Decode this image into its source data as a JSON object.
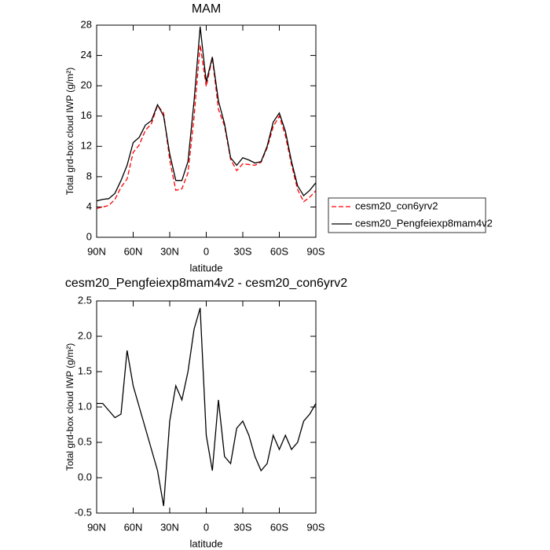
{
  "chart_data": [
    {
      "type": "line",
      "title": "MAM",
      "xlabel": "latitude",
      "ylabel": "Total grd-box cloud IWP (g/m²)",
      "x": [
        90,
        85,
        80,
        75,
        70,
        65,
        60,
        55,
        50,
        45,
        40,
        35,
        30,
        25,
        20,
        15,
        10,
        5,
        0,
        -5,
        -10,
        -15,
        -20,
        -25,
        -30,
        -35,
        -40,
        -45,
        -50,
        -55,
        -60,
        -65,
        -70,
        -75,
        -80,
        -85,
        -90
      ],
      "series": [
        {
          "name": "cesm20_con6yrv2",
          "color": "#ff0000",
          "linestyle": "dashed",
          "values": [
            3.8,
            4.0,
            4.2,
            5.0,
            6.6,
            7.7,
            11.2,
            12.2,
            14.1,
            15.0,
            17.4,
            16.4,
            10.2,
            6.2,
            6.4,
            8.5,
            15.9,
            25.4,
            19.9,
            23.7,
            16.9,
            14.7,
            10.3,
            8.8,
            9.7,
            9.6,
            9.5,
            9.9,
            11.8,
            14.6,
            16.0,
            13.4,
            9.6,
            6.3,
            4.7,
            5.3,
            6.15
          ]
        },
        {
          "name": "cesm20_Pengfeiexp8mam4v2",
          "color": "#000000",
          "linestyle": "solid",
          "values": [
            4.8,
            5.0,
            5.1,
            5.8,
            7.5,
            9.5,
            12.5,
            13.2,
            14.8,
            15.4,
            17.5,
            16.0,
            11.0,
            7.5,
            7.5,
            10.0,
            18.0,
            27.8,
            20.5,
            23.8,
            18.0,
            15.0,
            10.5,
            9.5,
            10.5,
            10.2,
            9.8,
            10.0,
            12.0,
            15.2,
            16.4,
            14.0,
            10.0,
            6.8,
            5.5,
            6.2,
            7.2
          ]
        }
      ],
      "xlim": [
        90,
        -90
      ],
      "xticks": [
        {
          "value": 90,
          "label": "90N"
        },
        {
          "value": 60,
          "label": "60N"
        },
        {
          "value": 30,
          "label": "30N"
        },
        0,
        {
          "value": -30,
          "label": "30S"
        },
        {
          "value": -60,
          "label": "60S"
        },
        {
          "value": -90,
          "label": "90S"
        }
      ],
      "ylim": [
        0,
        28
      ],
      "yticks": [
        0,
        4,
        8,
        12,
        16,
        20,
        24,
        28
      ],
      "legend": "right"
    },
    {
      "type": "line",
      "title": "cesm20_Pengfeiexp8mam4v2 - cesm20_con6yrv2",
      "xlabel": "latitude",
      "ylabel": "Total grd-box cloud IWP (g/m²)",
      "x": [
        90,
        85,
        80,
        75,
        70,
        65,
        60,
        55,
        50,
        45,
        40,
        35,
        30,
        25,
        20,
        15,
        10,
        5,
        0,
        -5,
        -10,
        -15,
        -20,
        -25,
        -30,
        -35,
        -40,
        -45,
        -50,
        -55,
        -60,
        -65,
        -70,
        -75,
        -80,
        -85,
        -90
      ],
      "series": [
        {
          "color": "#000000",
          "linestyle": "solid",
          "values": [
            1.05,
            1.05,
            0.95,
            0.85,
            0.9,
            1.8,
            1.3,
            1.0,
            0.7,
            0.4,
            0.1,
            -0.4,
            0.8,
            1.3,
            1.1,
            1.5,
            2.1,
            2.4,
            0.6,
            0.1,
            1.1,
            0.3,
            0.2,
            0.7,
            0.8,
            0.6,
            0.3,
            0.1,
            0.2,
            0.6,
            0.4,
            0.6,
            0.4,
            0.5,
            0.8,
            0.9,
            1.05
          ]
        }
      ],
      "xlim": [
        90,
        -90
      ],
      "xticks": [
        {
          "value": 90,
          "label": "90N"
        },
        {
          "value": 60,
          "label": "60N"
        },
        {
          "value": 30,
          "label": "30N"
        },
        0,
        {
          "value": -30,
          "label": "30S"
        },
        {
          "value": -60,
          "label": "60S"
        },
        {
          "value": -90,
          "label": "90S"
        }
      ],
      "ylim": [
        -0.5,
        2.5
      ],
      "yticks": [
        -0.5,
        {
          "value": 0,
          "label": "0.0"
        },
        0.5,
        {
          "value": 1,
          "label": "1.0"
        },
        1.5,
        {
          "value": 2,
          "label": "2.0"
        },
        2.5
      ]
    }
  ]
}
